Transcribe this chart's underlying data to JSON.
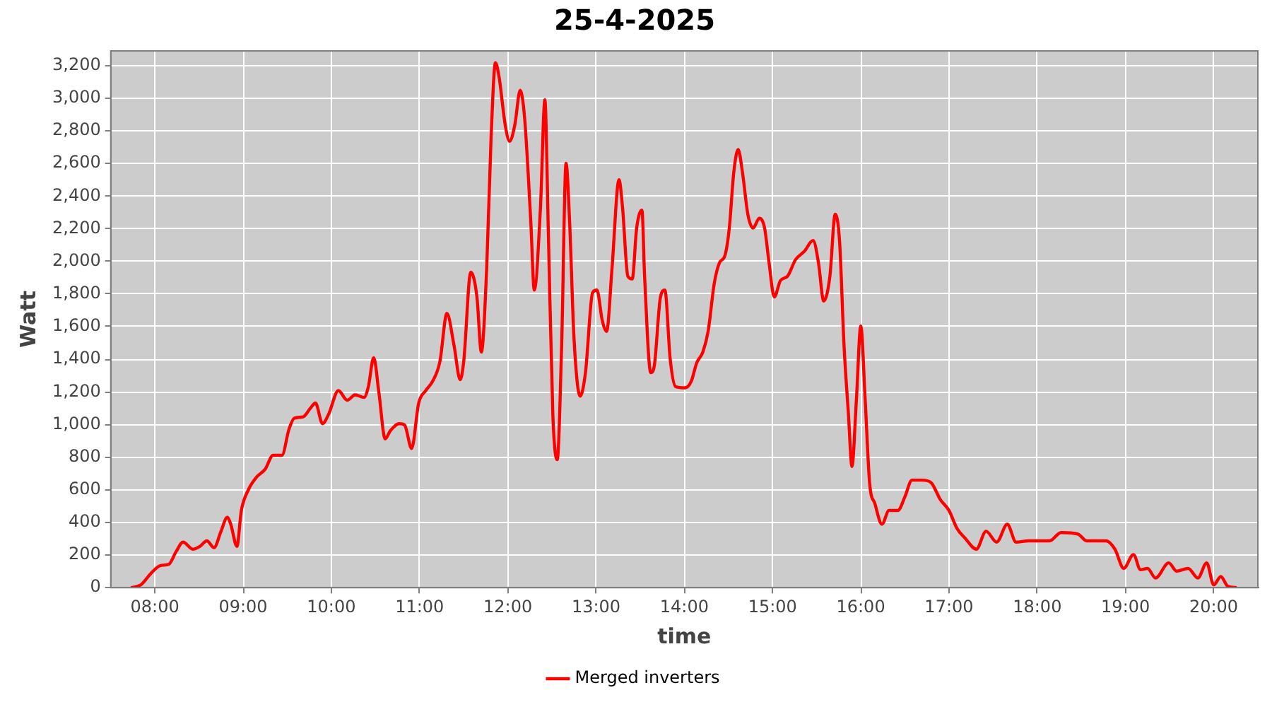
{
  "chart_data": {
    "type": "line",
    "title": "25-4-2025",
    "xlabel": "time",
    "ylabel": "Watt",
    "xlim": [
      7.5,
      20.5
    ],
    "xticks": [
      {
        "value": 8,
        "label": "08:00"
      },
      {
        "value": 9,
        "label": "09:00"
      },
      {
        "value": 10,
        "label": "10:00"
      },
      {
        "value": 11,
        "label": "11:00"
      },
      {
        "value": 12,
        "label": "12:00"
      },
      {
        "value": 13,
        "label": "13:00"
      },
      {
        "value": 14,
        "label": "14:00"
      },
      {
        "value": 15,
        "label": "15:00"
      },
      {
        "value": 16,
        "label": "16:00"
      },
      {
        "value": 17,
        "label": "17:00"
      },
      {
        "value": 18,
        "label": "18:00"
      },
      {
        "value": 19,
        "label": "19:00"
      },
      {
        "value": 20,
        "label": "20:00"
      }
    ],
    "ylim": [
      0,
      3290
    ],
    "yticks": [
      0,
      200,
      400,
      600,
      800,
      {
        "value": 1000,
        "label": "1,000"
      },
      {
        "value": 1200,
        "label": "1,200"
      },
      {
        "value": 1400,
        "label": "1,400"
      },
      {
        "value": 1600,
        "label": "1,600"
      },
      {
        "value": 1800,
        "label": "1,800"
      },
      {
        "value": 2000,
        "label": "2,000"
      },
      {
        "value": 2200,
        "label": "2,200"
      },
      {
        "value": 2400,
        "label": "2,400"
      },
      {
        "value": 2600,
        "label": "2,600"
      },
      {
        "value": 2800,
        "label": "2,800"
      },
      {
        "value": 3000,
        "label": "3,000"
      },
      {
        "value": 3200,
        "label": "3,200"
      }
    ],
    "grid": true,
    "legend": "bottom",
    "marker": "none",
    "line_style": "solid",
    "series": [
      {
        "name": "Merged inverters",
        "color": "#ff0000",
        "x": [
          7.73,
          7.84,
          7.95,
          8.06,
          8.16,
          8.24,
          8.32,
          8.43,
          8.51,
          8.59,
          8.67,
          8.75,
          8.82,
          8.86,
          8.93,
          8.98,
          9.06,
          9.15,
          9.25,
          9.34,
          9.44,
          9.52,
          9.58,
          9.68,
          9.76,
          9.82,
          9.9,
          9.97,
          10.08,
          10.18,
          10.27,
          10.37,
          10.42,
          10.48,
          10.54,
          10.61,
          10.67,
          10.77,
          10.83,
          10.91,
          10.99,
          11.07,
          11.15,
          11.23,
          11.31,
          11.39,
          11.46,
          11.5,
          11.58,
          11.65,
          11.7,
          11.76,
          11.81,
          11.86,
          11.9,
          11.97,
          12.02,
          12.08,
          12.14,
          12.19,
          12.26,
          12.3,
          12.37,
          12.42,
          12.46,
          12.51,
          12.56,
          12.61,
          12.66,
          12.7,
          12.75,
          12.82,
          12.88,
          12.96,
          13.01,
          13.07,
          13.12,
          13.18,
          13.26,
          13.3,
          13.36,
          13.41,
          13.46,
          13.52,
          13.55,
          13.62,
          13.66,
          13.73,
          13.78,
          13.84,
          13.9,
          14.01,
          14.08,
          14.14,
          14.21,
          14.27,
          14.34,
          14.4,
          14.46,
          14.51,
          14.56,
          14.61,
          14.66,
          14.72,
          14.78,
          14.85,
          14.91,
          14.96,
          15.02,
          15.09,
          15.17,
          15.26,
          15.36,
          15.46,
          15.52,
          15.58,
          15.65,
          15.71,
          15.76,
          15.81,
          15.86,
          15.9,
          15.95,
          16.0,
          16.05,
          16.1,
          16.16,
          16.24,
          16.32,
          16.42,
          16.5,
          16.58,
          16.7,
          16.8,
          16.9,
          17.0,
          17.09,
          17.18,
          17.31,
          17.42,
          17.54,
          17.66,
          17.76,
          17.9,
          18.14,
          18.27,
          18.46,
          18.56,
          18.78,
          18.88,
          18.98,
          19.09,
          19.17,
          19.25,
          19.34,
          19.49,
          19.58,
          19.71,
          19.82,
          19.92,
          20.0,
          20.08,
          20.16,
          20.26
        ],
        "values": [
          0,
          17,
          84,
          135,
          144,
          220,
          279,
          236,
          253,
          287,
          245,
          346,
          431,
          389,
          253,
          473,
          600,
          676,
          726,
          811,
          811,
          971,
          1039,
          1047,
          1098,
          1132,
          1005,
          1064,
          1208,
          1149,
          1182,
          1166,
          1233,
          1410,
          1191,
          912,
          963,
          1005,
          997,
          853,
          1132,
          1208,
          1267,
          1385,
          1681,
          1486,
          1275,
          1385,
          1934,
          1782,
          1444,
          1951,
          2753,
          3218,
          3133,
          2838,
          2736,
          2838,
          3049,
          2880,
          2247,
          1824,
          2331,
          2990,
          2162,
          1064,
          785,
          1486,
          2601,
          2247,
          1529,
          1174,
          1318,
          1807,
          1824,
          1639,
          1571,
          1951,
          2500,
          2331,
          1909,
          1892,
          2204,
          2314,
          1909,
          1318,
          1360,
          1782,
          1824,
          1402,
          1233,
          1225,
          1267,
          1377,
          1444,
          1571,
          1867,
          1993,
          2035,
          2204,
          2542,
          2686,
          2542,
          2289,
          2204,
          2264,
          2204,
          1993,
          1782,
          1883,
          1909,
          2010,
          2061,
          2128,
          1993,
          1757,
          1909,
          2289,
          2120,
          1486,
          1064,
          743,
          1149,
          1605,
          1149,
          642,
          515,
          389,
          473,
          473,
          557,
          659,
          659,
          642,
          541,
          473,
          363,
          304,
          236,
          346,
          279,
          389,
          279,
          287,
          287,
          338,
          329,
          287,
          287,
          236,
          118,
          203,
          110,
          118,
          59,
          152,
          101,
          118,
          59,
          152,
          17,
          68,
          8,
          0
        ]
      }
    ]
  }
}
